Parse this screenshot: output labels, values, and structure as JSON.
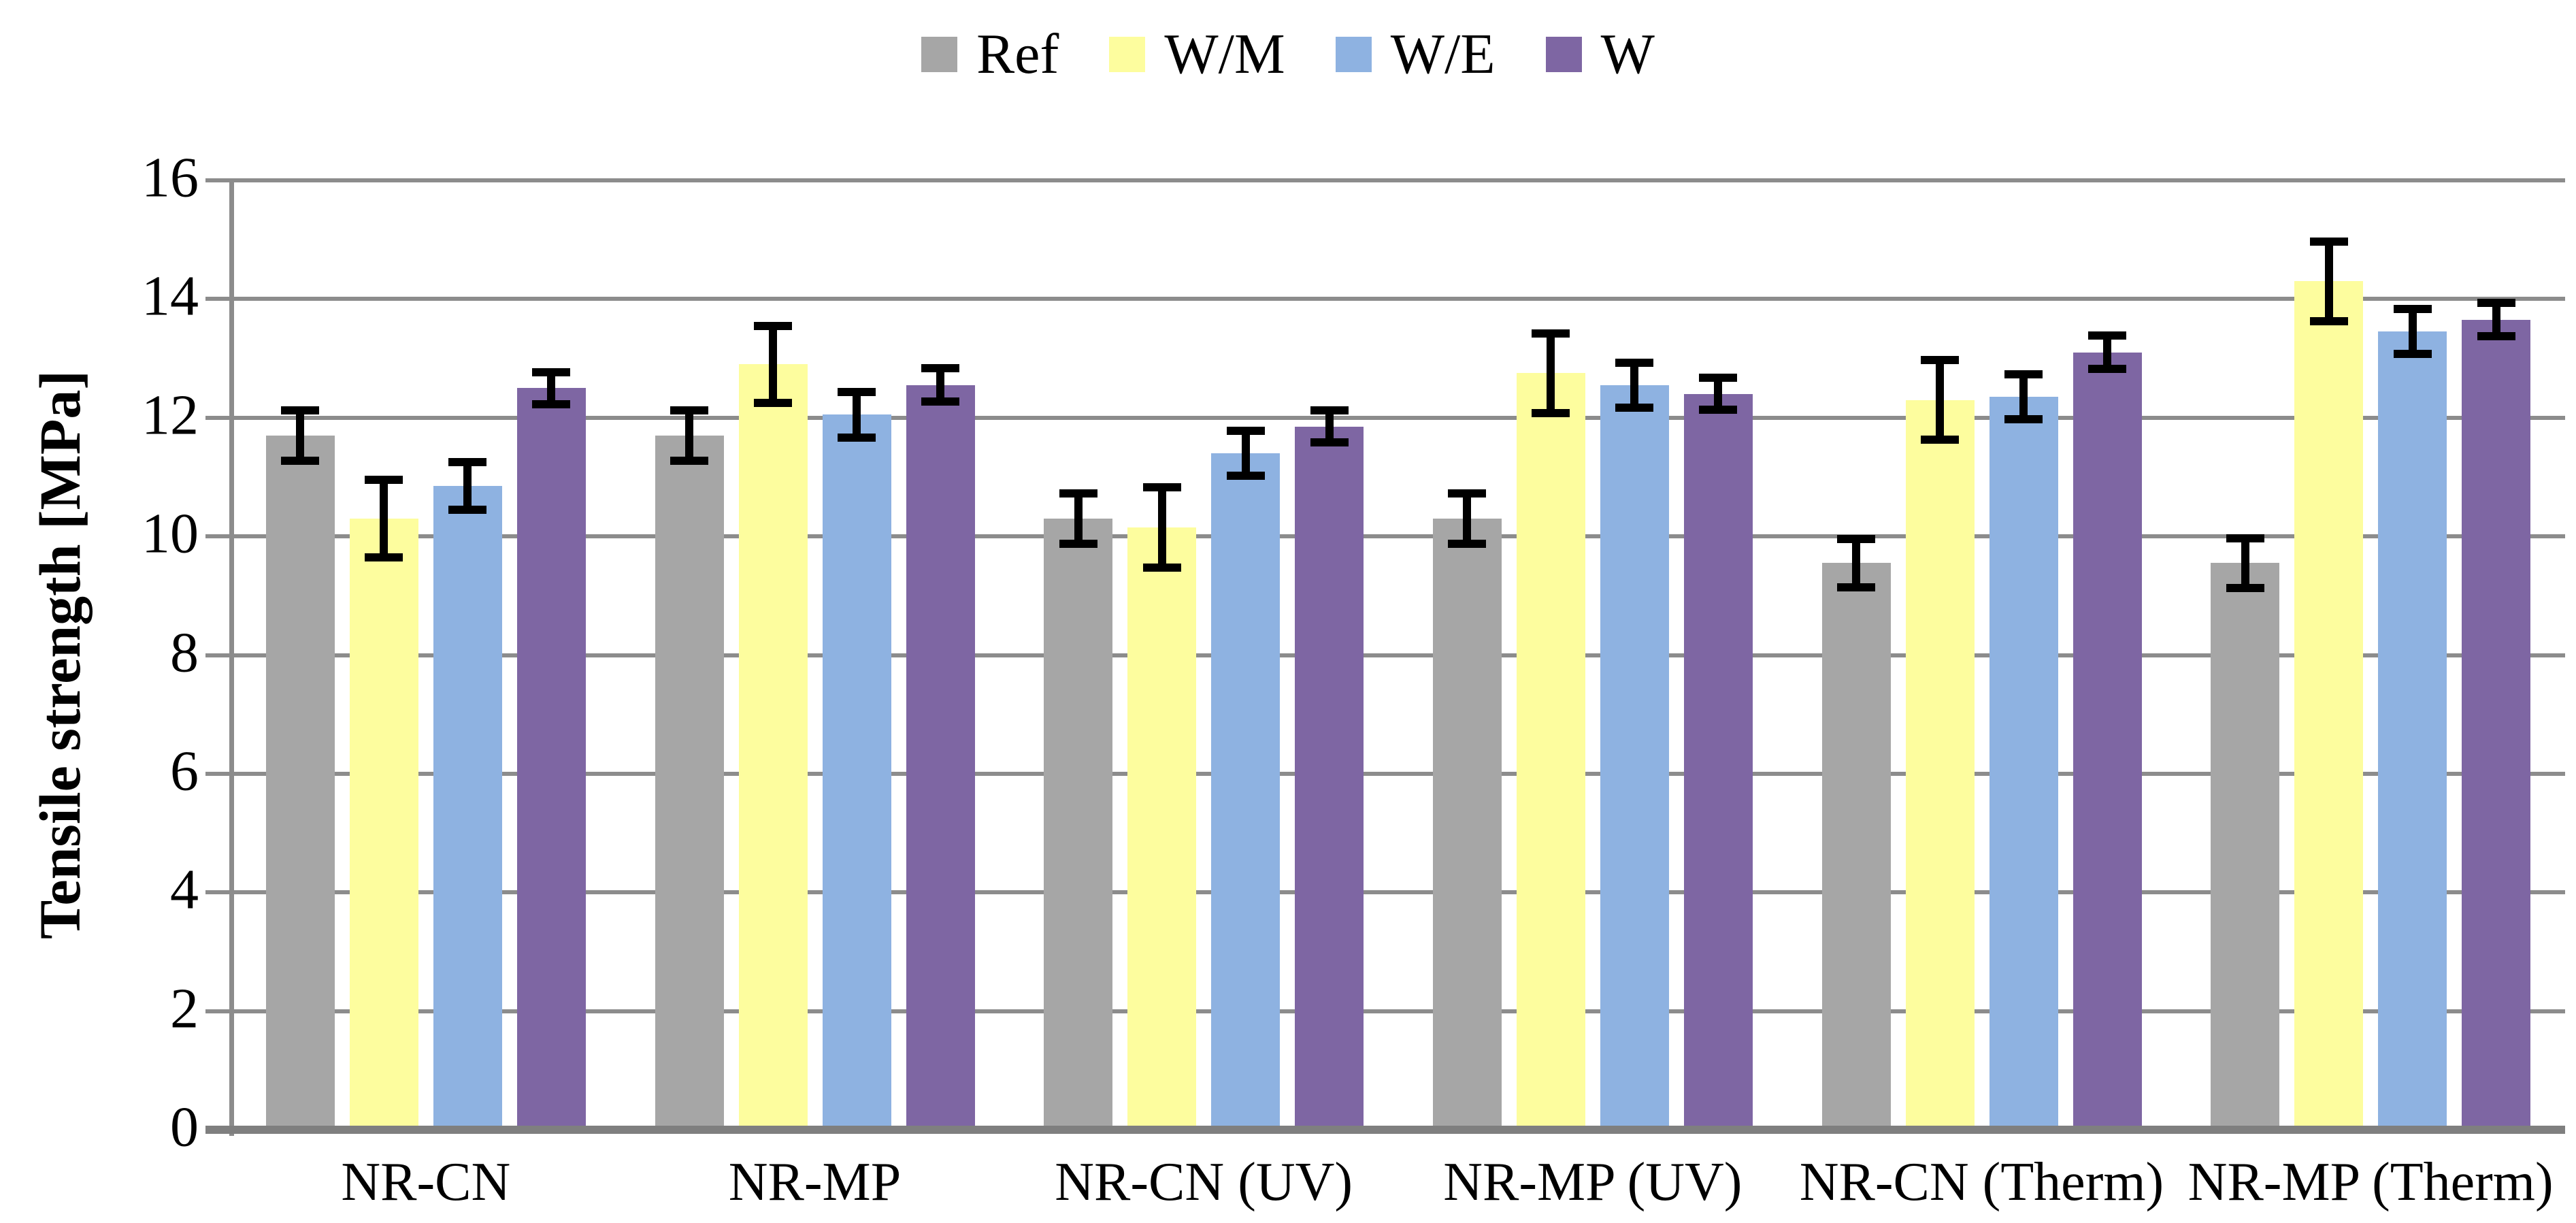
{
  "figure": {
    "kind": "grouped bar chart with error bars",
    "background": "#ffffff"
  },
  "chart_data": {
    "type": "bar",
    "title": "",
    "xlabel": "",
    "ylabel": "Tensile strength [MPa]",
    "ylim": [
      0,
      16
    ],
    "ytick_step": 2,
    "yticks": [
      "0",
      "2",
      "4",
      "6",
      "8",
      "10",
      "12",
      "14",
      "16"
    ],
    "grid": "horizontal",
    "gridline_color": "#8C8C8C",
    "axis_color": "#7F7F7F",
    "error_bar_color": "#000000",
    "legend_position": "top-center",
    "categories": [
      "NR-CN",
      "NR-MP",
      "NR-CN (UV)",
      "NR-MP (UV)",
      "NR-CN (Therm)",
      "NR-MP (Therm)"
    ],
    "series": [
      {
        "name": "Ref",
        "color": "#A6A6A6",
        "values": [
          11.7,
          11.7,
          10.3,
          10.3,
          9.55,
          9.55
        ],
        "errors": [
          0.42,
          0.42,
          0.42,
          0.42,
          0.41,
          0.42
        ]
      },
      {
        "name": "W/M",
        "color": "#FDFD9E",
        "values": [
          10.3,
          12.9,
          10.15,
          12.75,
          12.3,
          14.3
        ],
        "errors": [
          0.65,
          0.65,
          0.68,
          0.67,
          0.67,
          0.67
        ]
      },
      {
        "name": "W/E",
        "color": "#8EB2E1",
        "values": [
          10.85,
          12.05,
          11.4,
          12.55,
          12.35,
          13.45
        ],
        "errors": [
          0.4,
          0.38,
          0.38,
          0.38,
          0.38,
          0.38
        ]
      },
      {
        "name": "W",
        "color": "#7E66A3",
        "values": [
          12.5,
          12.55,
          11.85,
          12.4,
          13.1,
          13.65
        ],
        "errors": [
          0.27,
          0.28,
          0.27,
          0.27,
          0.28,
          0.28
        ]
      }
    ]
  }
}
